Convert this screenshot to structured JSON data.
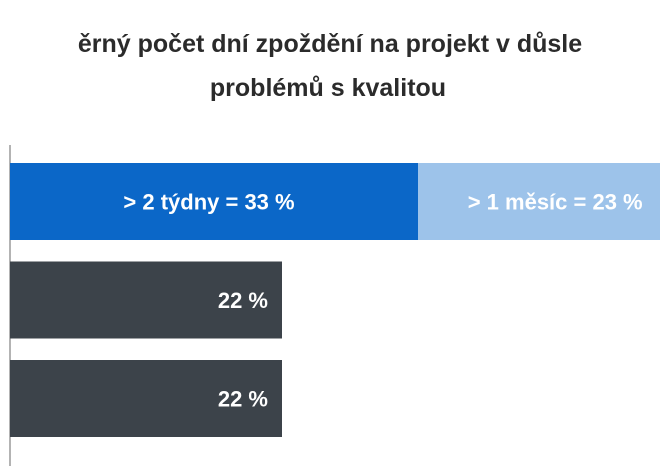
{
  "chart_data": {
    "type": "bar",
    "orientation": "horizontal",
    "stacked": true,
    "title": [
      "ěrný počet dní zpoždění na projekt v důsle",
      "problémů s kvalitou"
    ],
    "categories": [
      null,
      null,
      null
    ],
    "series": [
      {
        "colors": [
          "#0b67c8",
          "#3c434a",
          "#3c434a"
        ],
        "values": [
          33,
          22,
          22
        ],
        "value_labels": [
          "> 2 týdny = 33 %",
          "22 %",
          "22 %"
        ]
      },
      {
        "color": "#9dc3ea",
        "values": [
          23,
          null,
          null
        ],
        "value_labels": [
          "> 1 měsíc = 23 %",
          null,
          null
        ]
      }
    ]
  }
}
